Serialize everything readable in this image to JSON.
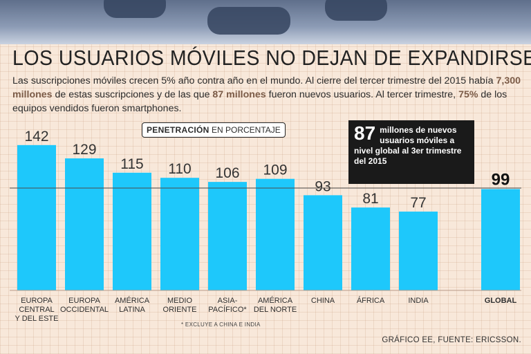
{
  "title": "LOS USUARIOS MÓVILES NO DEJAN DE EXPANDIRSE",
  "intro": {
    "p1": "Las suscripciones móviles crecen 5% año contra año en el mundo. Al cierre del tercer trimestre del 2015 había ",
    "b1": "7,300 millones",
    "p2": " de estas suscripciones y de las que ",
    "b2": "87 millones",
    "p3": " fueron nuevos usuarios. Al tercer trimestre, ",
    "b3": "75%",
    "p4": " de los equipos vendidos fueron smartphones."
  },
  "badge": {
    "bold": "PENETRACIÓN",
    "rest": " EN PORCENTAJE"
  },
  "callout": {
    "number": "87",
    "text": "millones de nuevos usuarios móviles a nivel global al 3er trimestre del 2015"
  },
  "footnote": "* EXCLUYE A CHINA E INDIA",
  "source": "GRÁFICO EE, FUENTE: ERICSSON.",
  "colors": {
    "bar": "#1ec8fb",
    "global_bar": "#1ec8fb",
    "label": "#333333",
    "callout_bg": "#1a1a1a",
    "background": "#f8e8da"
  },
  "chart_data": {
    "type": "bar",
    "title": "PENETRACIÓN EN PORCENTAJE",
    "ylim": [
      0,
      150
    ],
    "categories": [
      [
        "EUROPA",
        "CENTRAL",
        "Y DEL ESTE"
      ],
      [
        "EUROPA",
        "OCCIDENTAL"
      ],
      [
        "AMÉRICA",
        "LATINA"
      ],
      [
        "MEDIO",
        "ORIENTE"
      ],
      [
        "ASIA-",
        "PACÍFICO*"
      ],
      [
        "AMÉRICA",
        "DEL NORTE"
      ],
      [
        "CHINA"
      ],
      [
        "ÁFRICA"
      ],
      [
        "INDIA"
      ],
      [
        "GLOBAL"
      ]
    ],
    "values": [
      142,
      129,
      115,
      110,
      106,
      109,
      93,
      81,
      77,
      99
    ],
    "highlight_index": 9,
    "reference_line": 100
  }
}
